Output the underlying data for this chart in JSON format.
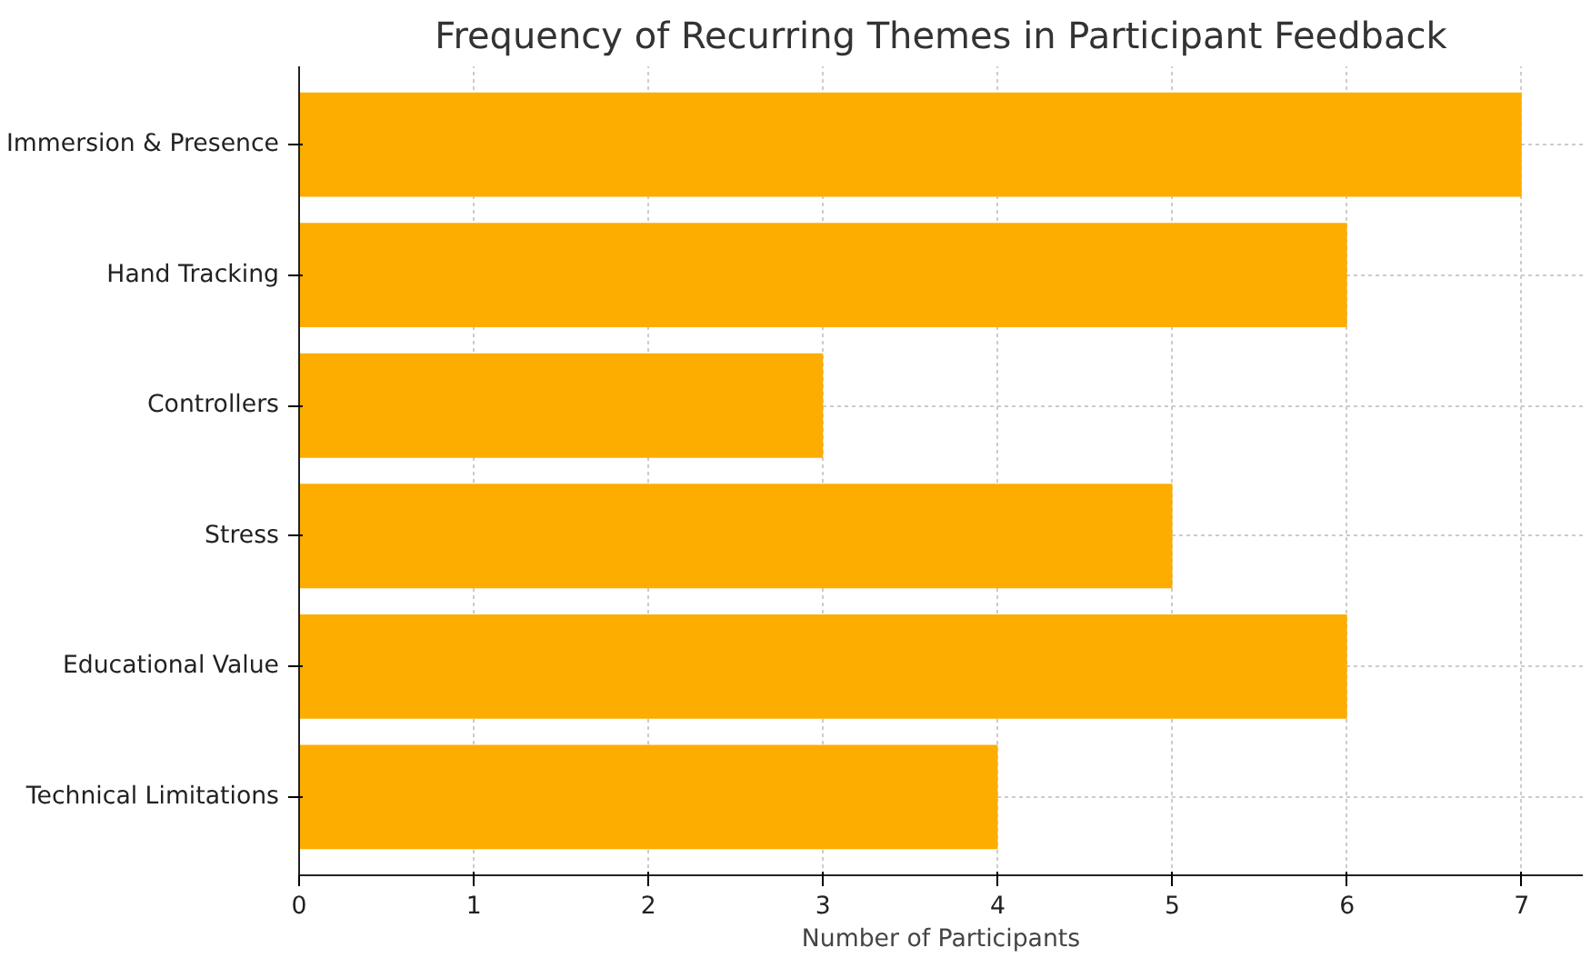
{
  "chart_data": {
    "type": "bar",
    "orientation": "horizontal",
    "title": "Frequency of Recurring Themes in Participant Feedback",
    "xlabel": "Number of Participants",
    "categories": [
      "Immersion & Presence",
      "Hand Tracking",
      "Controllers",
      "Stress",
      "Educational Value",
      "Technical Limitations"
    ],
    "values": [
      7,
      6,
      3,
      5,
      6,
      4
    ],
    "color": "#fcad00",
    "xlim": [
      0,
      7.35
    ],
    "xticks": [
      0,
      1,
      2,
      3,
      4,
      5,
      6,
      7
    ],
    "grid": true
  }
}
